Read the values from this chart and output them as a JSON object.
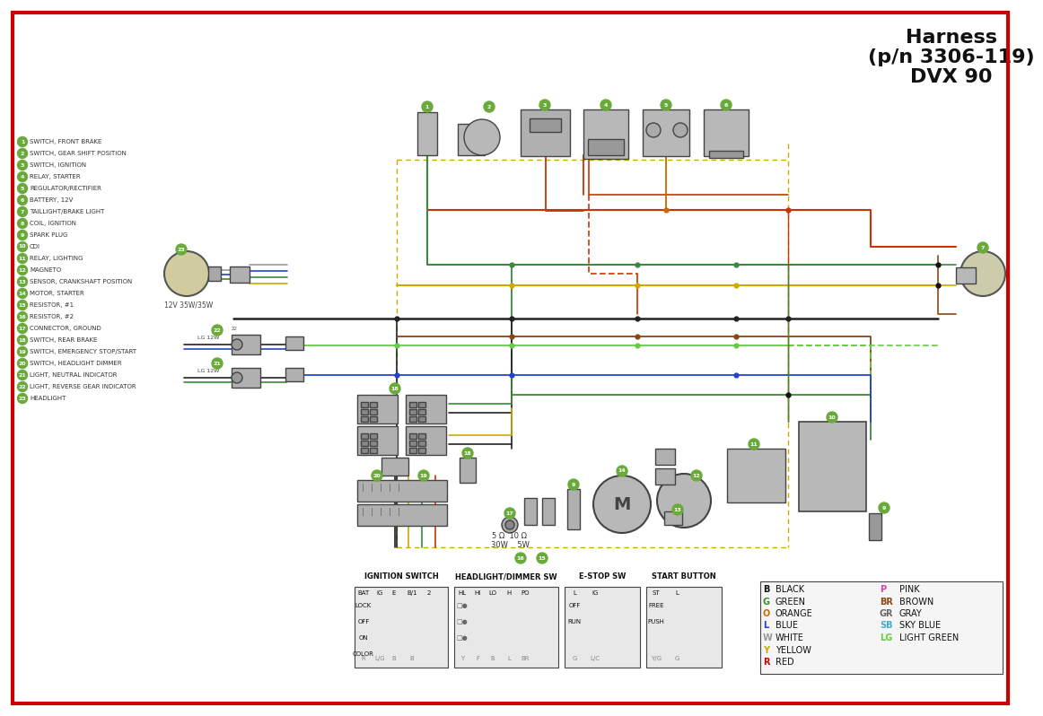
{
  "title_line1": "Harness",
  "title_line2": "(p/n 3306-119)",
  "title_line3": "DVX 90",
  "bg_color": "#ffffff",
  "border_color": "#cc0000",
  "title_color": "#1a1a2e",
  "component_labels": [
    "SWITCH, FRONT BRAKE",
    "SWITCH, GEAR SHIFT POSITION",
    "SWITCH, IGNITION",
    "RELAY, STARTER",
    "REGULATOR/RECTIFIER",
    "BATTERY, 12V",
    "TAILLIGHT/BRAKE LIGHT",
    "COIL, IGNITION",
    "SPARK PLUG",
    "CDI",
    "RELAY, LIGHTING",
    "MAGNETO",
    "SENSOR, CRANKSHAFT POSITION",
    "MOTOR, STARTER",
    "RESISTOR, #1",
    "RESISTOR, #2",
    "CONNECTOR, GROUND",
    "SWITCH, REAR BRAKE",
    "SWITCH, EMERGENCY STOP/START",
    "SWITCH, HEADLIGHT DIMMER",
    "LIGHT, NEUTRAL INDICATOR",
    "LIGHT, REVERSE GEAR INDICATOR",
    "HEADLIGHT"
  ],
  "color_legend_left": [
    [
      "B",
      "#111111",
      "BLACK"
    ],
    [
      "G",
      "#3a8a3a",
      "GREEN"
    ],
    [
      "O",
      "#cc6600",
      "ORANGE"
    ],
    [
      "L",
      "#2244cc",
      "BLUE"
    ],
    [
      "W",
      "#888888",
      "WHITE"
    ],
    [
      "Y",
      "#ccaa00",
      "YELLOW"
    ],
    [
      "R",
      "#cc0000",
      "RED"
    ]
  ],
  "color_legend_right": [
    [
      "P",
      "#cc44aa",
      "PINK"
    ],
    [
      "BR",
      "#8B4513",
      "BROWN"
    ],
    [
      "GR",
      "#666666",
      "GRAY"
    ],
    [
      "SB",
      "#44aacc",
      "SKY BLUE"
    ],
    [
      "LG",
      "#66cc44",
      "LIGHT GREEN"
    ]
  ],
  "wire_colors": {
    "red": "#cc3300",
    "green": "#3a8a3a",
    "yellow": "#ccaa00",
    "black": "#222222",
    "blue": "#2244cc",
    "brown": "#8B4513",
    "orange": "#cc6600",
    "white": "#999999",
    "light_green": "#66cc44",
    "gray": "#666666"
  }
}
